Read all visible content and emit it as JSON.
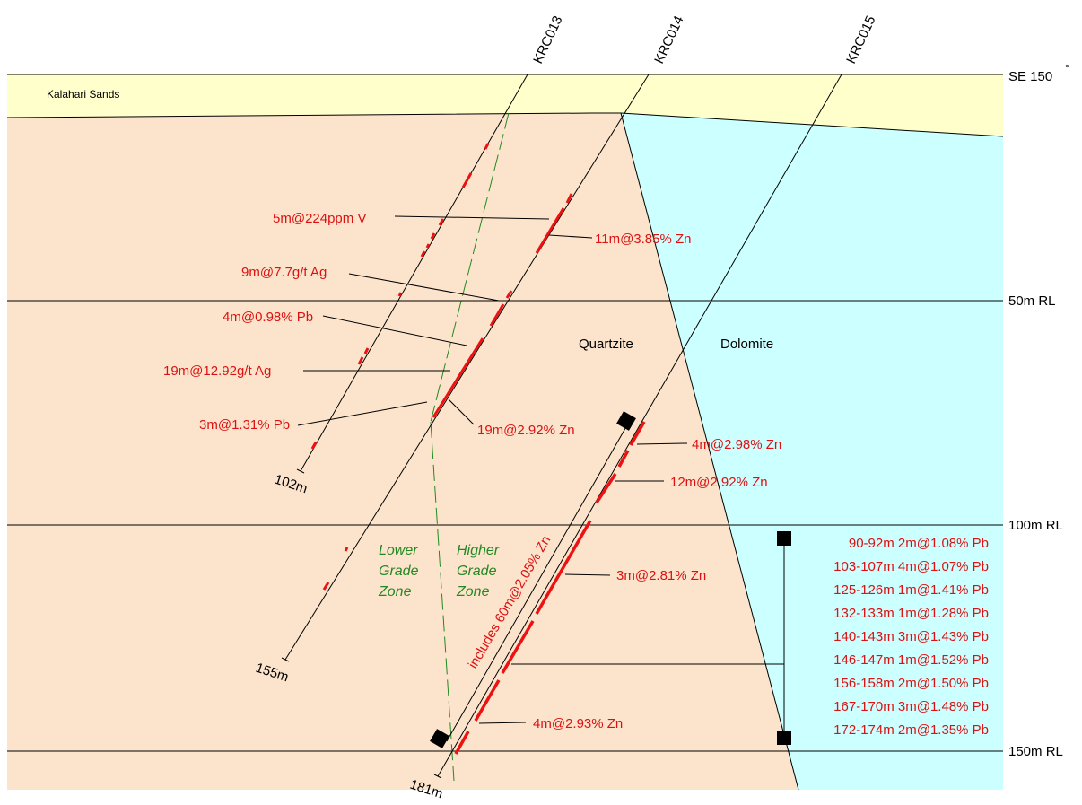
{
  "section": {
    "orientation_label": "SE 150",
    "degree_mark": "°",
    "layers": {
      "kalahari_sands": "Kalahari Sands",
      "quartzite": "Quartzite",
      "dolomite": "Dolomite"
    },
    "rl_labels": [
      "50m RL",
      "100m RL",
      "150m RL"
    ],
    "holes": [
      {
        "id": "KRC013",
        "depth_label": "102m"
      },
      {
        "id": "KRC014",
        "depth_label": "155m"
      },
      {
        "id": "KRC015",
        "depth_label": "181m"
      }
    ],
    "zones": {
      "lower": [
        "Lower",
        "Grade",
        "Zone"
      ],
      "higher": [
        "Higher",
        "Grade",
        "Zone"
      ]
    },
    "intercepts": {
      "v_224": "5m@224ppm V",
      "ag_7_7": "9m@7.7g/t Ag",
      "pb_0_98": "4m@0.98% Pb",
      "ag_12_92": "19m@12.92g/t Ag",
      "pb_1_31": "3m@1.31% Pb",
      "zn_3_85": "11m@3.85% Zn",
      "zn_2_92_19m": "19m@2.92% Zn",
      "zn_2_98": "4m@2.98% Zn",
      "zn_2_92_12m": "12m@2.92% Zn",
      "zn_2_81": "3m@2.81% Zn",
      "zn_2_93": "4m@2.93% Zn",
      "includes": "includes 60m@2.05% Zn"
    },
    "pb_list": [
      "90-92m 2m@1.08% Pb",
      "103-107m 4m@1.07% Pb",
      "125-126m 1m@1.41% Pb",
      "132-133m 1m@1.28% Pb",
      "140-143m 3m@1.43% Pb",
      "146-147m 1m@1.52% Pb",
      "156-158m 2m@1.50% Pb",
      "167-170m 3m@1.48% Pb",
      "172-174m 2m@1.35% Pb"
    ],
    "colors": {
      "sands": "#ffffcc",
      "quartzite": "#fce4cc",
      "dolomite": "#ccffff",
      "intercept": "#ee1111",
      "label": "#dd1111",
      "zone": "#228822"
    }
  }
}
